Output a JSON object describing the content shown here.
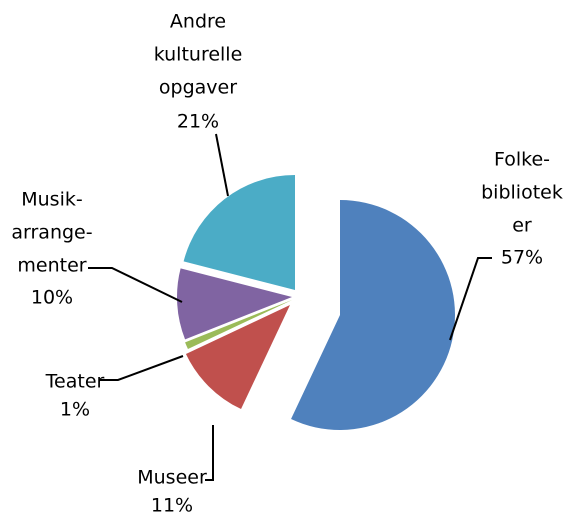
{
  "chart_data": {
    "type": "pie",
    "categories": [
      [
        "Folke-",
        "bibliotek",
        "er"
      ],
      [
        "Museer"
      ],
      [
        "Teater"
      ],
      [
        "Musik-",
        "arrange-",
        "menter"
      ],
      [
        "Andre",
        "kulturelle",
        "opgaver"
      ]
    ],
    "values": [
      57,
      11,
      1,
      10,
      21
    ],
    "value_labels": [
      "57%",
      "11%",
      "1%",
      "10%",
      "21%"
    ],
    "colors": [
      "#4f81bd",
      "#c0504d",
      "#9bbb59",
      "#8064a2",
      "#4bacc6"
    ]
  }
}
